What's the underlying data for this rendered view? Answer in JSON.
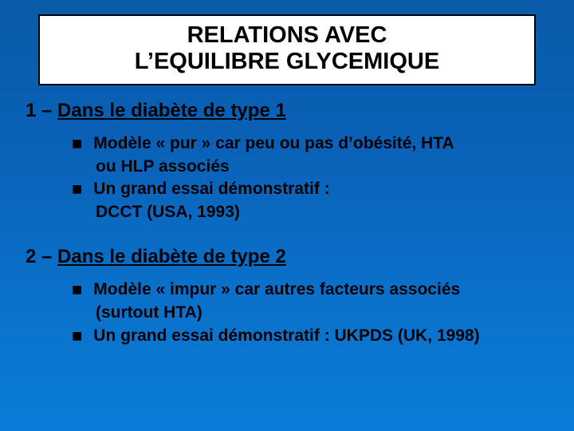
{
  "colors": {
    "background_top": "#0a5ba8",
    "background_bottom": "#0a7dd8",
    "title_box_bg": "#ffffff",
    "title_box_border": "#000000",
    "text": "#000000",
    "bullet": "#000000"
  },
  "typography": {
    "title_fontsize_pt": 22,
    "heading_fontsize_pt": 18,
    "body_fontsize_pt": 16,
    "font_family": "Arial",
    "font_weight": "bold"
  },
  "title": {
    "line1": "RELATIONS AVEC",
    "line2": "L’EQUILIBRE GLYCEMIQUE"
  },
  "section1": {
    "prefix": "1 – ",
    "heading_underlined": "Dans le diabète de type 1",
    "bullets": [
      {
        "main": "Modèle « pur » car peu ou pas d’obésité, HTA",
        "cont": "ou HLP associés"
      },
      {
        "main": "Un grand essai démonstratif :",
        "cont": "DCCT (USA, 1993)"
      }
    ]
  },
  "section2": {
    "prefix": "2 – ",
    "heading_underlined": "Dans le diabète de type 2",
    "bullets": [
      {
        "main": "Modèle « impur » car autres facteurs associés",
        "cont": "(surtout HTA)"
      },
      {
        "main": "Un grand essai démonstratif : UKPDS (UK, 1998)"
      }
    ]
  }
}
